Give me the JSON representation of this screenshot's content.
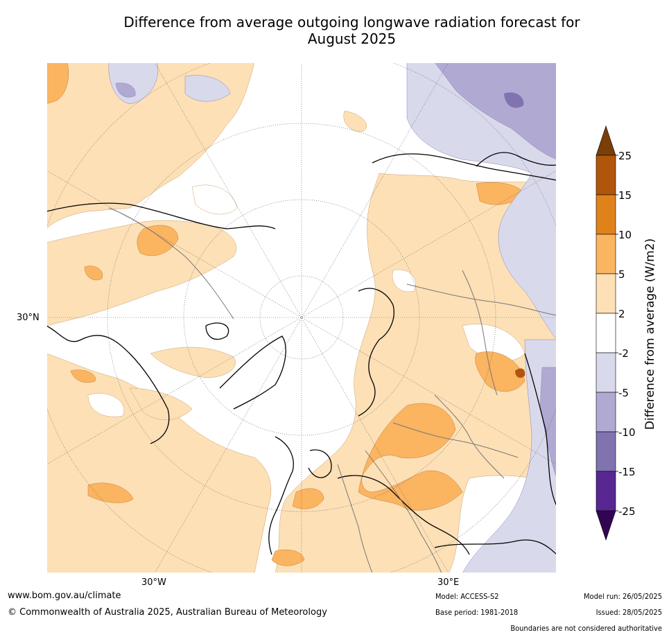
{
  "title": {
    "line1": "Difference from average outgoing longwave radiation forecast for",
    "line2": "August 2025"
  },
  "map": {
    "lat_label": "30°N",
    "lon_labels": {
      "west": "30°W",
      "east": "30°E"
    }
  },
  "colorbar": {
    "label": "Difference from average (W/m2)",
    "ticks": [
      "25",
      "15",
      "10",
      "5",
      "2",
      "-2",
      "-5",
      "-10",
      "-15",
      "-25"
    ],
    "colors": {
      "extend_high": "#7a3f08",
      "bins": [
        "#b0560b",
        "#e0821a",
        "#fbb460",
        "#fde0b6",
        "#ffffff",
        "#d9d9ec",
        "#b0a9d2",
        "#8073b0",
        "#582792"
      ],
      "extend_low": "#320552"
    }
  },
  "footer": {
    "website": "www.bom.gov.au/climate",
    "copyright": "© Commonwealth of Australia 2025, Australian Bureau of Meteorology",
    "model": "Model: ACCESS-S2",
    "base_period": "Base period: 1981-2018",
    "model_run": "Model run: 26/05/2025",
    "issued": "Issued: 28/05/2025",
    "disclaimer": "Boundaries are not considered authoritative"
  }
}
